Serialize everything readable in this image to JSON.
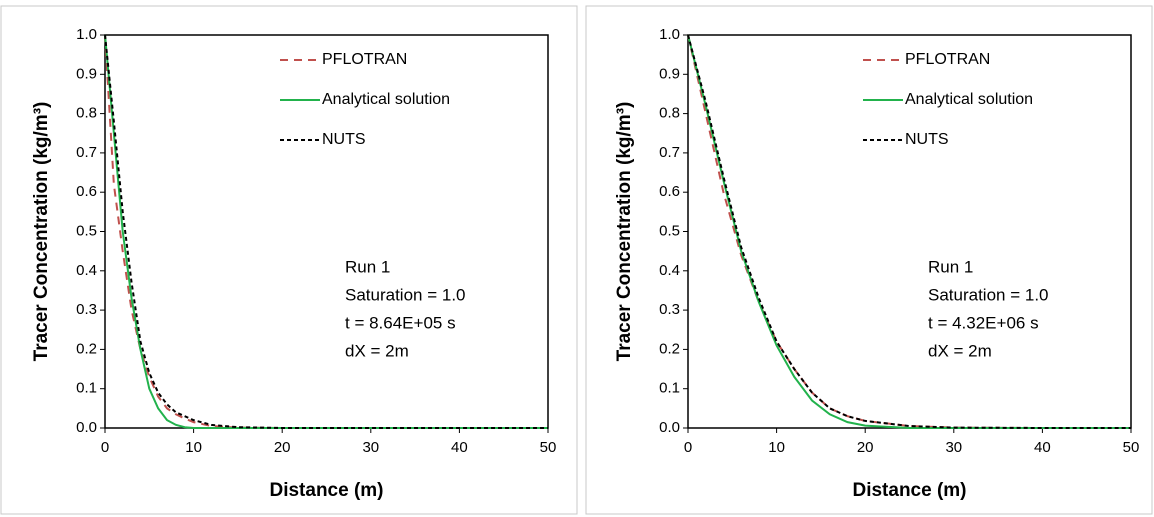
{
  "chart_data": [
    {
      "type": "line",
      "x": [
        0,
        1,
        2,
        3,
        4,
        5,
        6,
        7,
        8,
        9,
        10,
        12,
        15,
        20,
        30,
        40,
        50
      ],
      "series": [
        {
          "name": "PFLOTRAN",
          "color": "#c0504d",
          "dash": "8,6",
          "values": [
            1.0,
            0.62,
            0.45,
            0.3,
            0.2,
            0.13,
            0.08,
            0.05,
            0.035,
            0.024,
            0.015,
            0.005,
            0.001,
            0,
            0,
            0,
            0
          ]
        },
        {
          "name": "Analytical solution",
          "color": "#22b24c",
          "dash": "none",
          "values": [
            1.0,
            0.75,
            0.5,
            0.33,
            0.2,
            0.1,
            0.05,
            0.02,
            0.008,
            0.002,
            0,
            0,
            0,
            0,
            0,
            0,
            0
          ]
        },
        {
          "name": "NUTS",
          "color": "#000000",
          "dash": "4,3",
          "values": [
            1.0,
            0.78,
            0.55,
            0.37,
            0.22,
            0.14,
            0.09,
            0.06,
            0.04,
            0.03,
            0.02,
            0.008,
            0.002,
            0,
            0,
            0,
            0
          ]
        }
      ],
      "xlabel": "Distance (m)",
      "ylabel": "Tracer Concentration (kg/m³)",
      "xlim": [
        0,
        50
      ],
      "xticks": [
        0,
        10,
        20,
        30,
        40,
        50
      ],
      "ylim": [
        0,
        1
      ],
      "yticks": [
        {
          "value": 0,
          "label": "0.0"
        },
        0.1,
        0.2,
        0.3,
        0.4,
        0.5,
        0.6,
        0.7,
        0.8,
        0.9,
        {
          "value": 1,
          "label": "1.0"
        }
      ],
      "annotations": [
        "Run 1",
        "Saturation = 1.0",
        "t = 8.64E+05 s",
        "dX = 2m"
      ]
    },
    {
      "type": "line",
      "x": [
        0,
        2,
        4,
        6,
        8,
        10,
        12,
        14,
        16,
        18,
        20,
        25,
        30,
        40,
        50
      ],
      "series": [
        {
          "name": "PFLOTRAN",
          "color": "#c0504d",
          "dash": "8,6",
          "values": [
            1.0,
            0.8,
            0.6,
            0.44,
            0.32,
            0.22,
            0.15,
            0.09,
            0.05,
            0.03,
            0.018,
            0.005,
            0.001,
            0,
            0
          ]
        },
        {
          "name": "Analytical solution",
          "color": "#22b24c",
          "dash": "none",
          "values": [
            1.0,
            0.82,
            0.63,
            0.45,
            0.32,
            0.21,
            0.13,
            0.07,
            0.035,
            0.015,
            0.006,
            0,
            0,
            0,
            0
          ]
        },
        {
          "name": "NUTS",
          "color": "#000000",
          "dash": "4,3",
          "values": [
            1.0,
            0.83,
            0.64,
            0.46,
            0.33,
            0.22,
            0.15,
            0.09,
            0.05,
            0.03,
            0.018,
            0.005,
            0.001,
            0,
            0
          ]
        }
      ],
      "xlabel": "Distance (m)",
      "ylabel": "Tracer Concentration (kg/m³)",
      "xlim": [
        0,
        50
      ],
      "xticks": [
        0,
        10,
        20,
        30,
        40,
        50
      ],
      "ylim": [
        0,
        1
      ],
      "yticks": [
        {
          "value": 0,
          "label": "0.0"
        },
        0.1,
        0.2,
        0.3,
        0.4,
        0.5,
        0.6,
        0.7,
        0.8,
        0.9,
        {
          "value": 1,
          "label": "1.0"
        }
      ],
      "annotations": [
        "Run 1",
        "Saturation = 1.0",
        "t = 4.32E+06 s",
        "dX = 2m"
      ]
    }
  ]
}
